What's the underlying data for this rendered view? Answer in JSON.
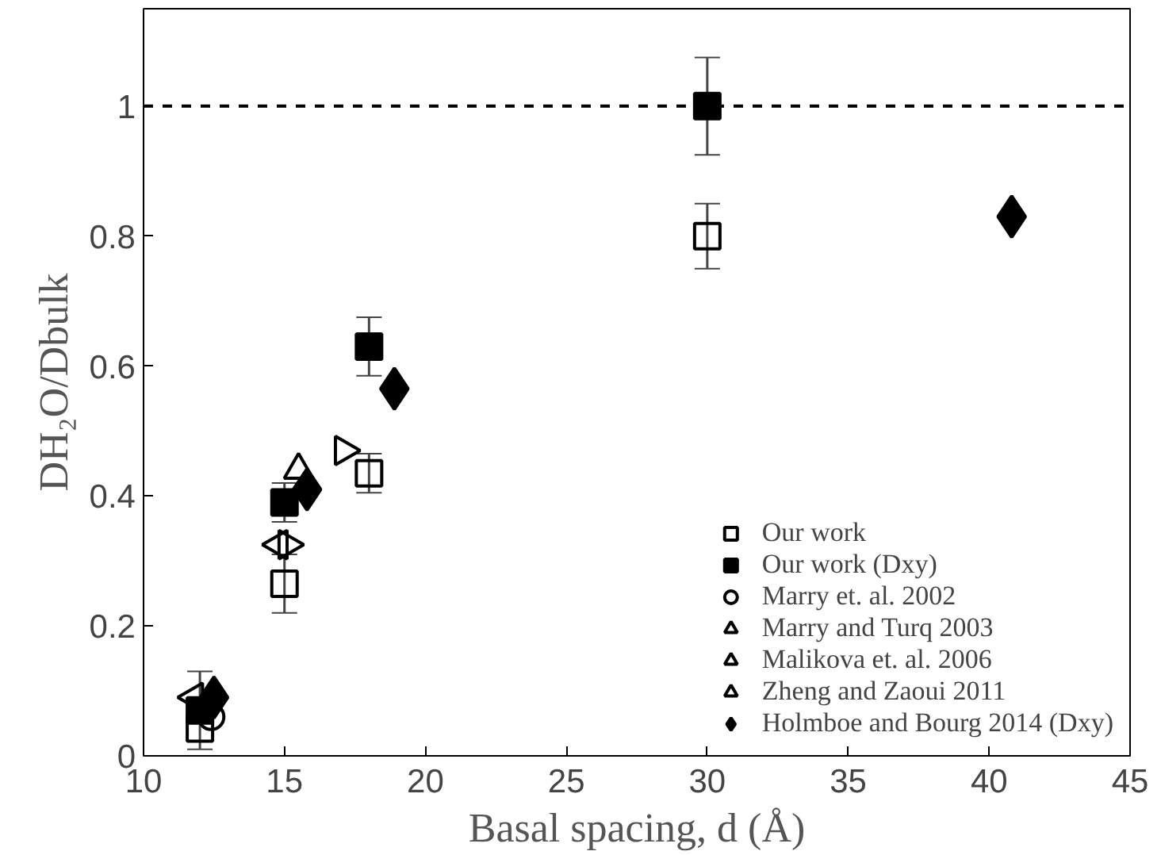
{
  "chart_data": {
    "type": "scatter",
    "xlabel": "Basal spacing, d (Å)",
    "ylabel": "DH₂O/Dbulk",
    "xlim": [
      10,
      45
    ],
    "xticks": [
      10,
      15,
      20,
      25,
      30,
      35,
      40,
      45
    ],
    "ylim": [
      0,
      1.15
    ],
    "yticks": [
      0,
      0.2,
      0.4,
      0.6,
      0.8,
      1
    ],
    "grid": false,
    "legend": "bottom right",
    "ref_lines": [
      {
        "axis": "y",
        "value": 1,
        "label": null,
        "color": "#000000",
        "line_style": "dashed"
      }
    ],
    "series": [
      {
        "name": "Our work",
        "color": "#000000",
        "marker": "square-open",
        "x": [
          12,
          15,
          18,
          30
        ],
        "values": [
          0.042,
          0.265,
          0.435,
          0.8
        ],
        "errors": [
          null,
          0.045,
          0.03,
          0.05
        ]
      },
      {
        "name": "Our work (Dxy)",
        "color": "#000000",
        "marker": "square",
        "x": [
          12,
          15,
          18,
          30
        ],
        "values": [
          0.07,
          0.39,
          0.63,
          1.0
        ],
        "errors": [
          0.06,
          0.03,
          0.045,
          0.075
        ]
      },
      {
        "name": "Marry et. al. 2002",
        "color": "#000000",
        "marker": "circle-open",
        "x": [
          12.4
        ],
        "values": [
          0.06
        ]
      },
      {
        "name": "Marry and Turq 2003",
        "color": "#000000",
        "marker": "triangle-open",
        "x": [
          15.5
        ],
        "values": [
          0.44
        ]
      },
      {
        "name": "Malikova et. al. 2006",
        "color": "#000000",
        "marker": "triangle-left-open",
        "x": [
          11.8,
          14.8
        ],
        "values": [
          0.09,
          0.325
        ]
      },
      {
        "name": "Zheng and Zaoui 2011",
        "color": "#000000",
        "marker": "triangle-right-open",
        "x": [
          15.1,
          17.1
        ],
        "values": [
          0.325,
          0.47
        ]
      },
      {
        "name": "Holmboe and Bourg 2014 (Dxy)",
        "color": "#000000",
        "marker": "diamond",
        "x": [
          12.5,
          15.8,
          18.9,
          40.8
        ],
        "values": [
          0.09,
          0.41,
          0.565,
          0.83
        ]
      }
    ]
  }
}
